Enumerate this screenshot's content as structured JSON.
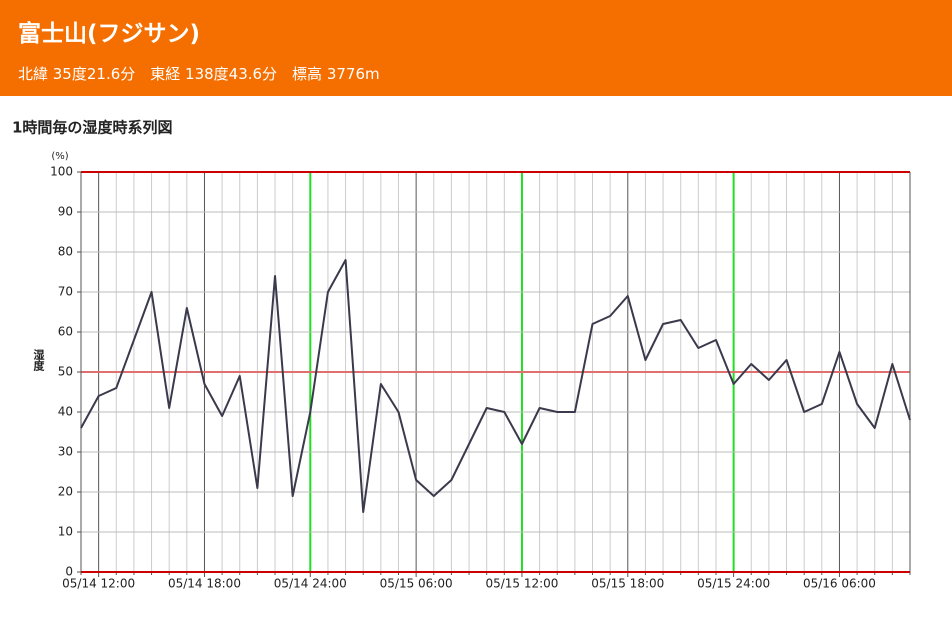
{
  "header": {
    "title": "富士山(フジサン)",
    "subtitle": "北緯 35度21.6分　東経 138度43.6分　標高 3776m"
  },
  "chart_data": {
    "type": "line",
    "title": "1時間毎の湿度時系列図",
    "y_unit": "(%)",
    "y_label": "湿度",
    "categories": [
      null,
      "05/14 12:00",
      null,
      null,
      null,
      null,
      null,
      "05/14 18:00",
      null,
      null,
      null,
      null,
      null,
      "05/14 24:00",
      null,
      null,
      null,
      null,
      null,
      "05/15 06:00",
      null,
      null,
      null,
      null,
      null,
      "05/15 12:00",
      null,
      null,
      null,
      null,
      null,
      "05/15 18:00",
      null,
      null,
      null,
      null,
      null,
      "05/15 24:00",
      null,
      null,
      null,
      null,
      null,
      "05/16 06:00",
      null,
      null,
      null,
      null
    ],
    "values": [
      36,
      44,
      46,
      58,
      70,
      41,
      66,
      47,
      39,
      49,
      21,
      74,
      19,
      40,
      70,
      78,
      15,
      47,
      40,
      23,
      19,
      23,
      32,
      41,
      40,
      32,
      41,
      40,
      40,
      62,
      64,
      69,
      53,
      62,
      63,
      56,
      58,
      47,
      52,
      48,
      53,
      40,
      42,
      55,
      42,
      36,
      52,
      38
    ],
    "color": "#3a3a4c",
    "ylim": [
      0,
      100
    ],
    "yticks": [
      0,
      10,
      20,
      30,
      40,
      50,
      60,
      70,
      80,
      90,
      100
    ],
    "reference_lines": [
      50
    ],
    "grid": true
  }
}
